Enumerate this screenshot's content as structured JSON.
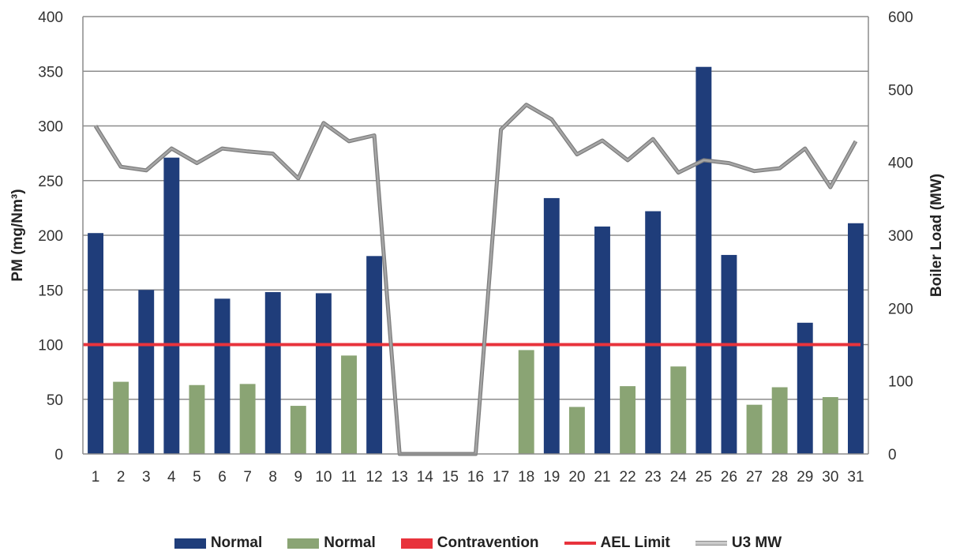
{
  "chart_data": {
    "type": "bar",
    "categories": [
      "1",
      "2",
      "3",
      "4",
      "5",
      "6",
      "7",
      "8",
      "9",
      "10",
      "11",
      "12",
      "13",
      "14",
      "15",
      "16",
      "17",
      "18",
      "19",
      "20",
      "21",
      "22",
      "23",
      "24",
      "25",
      "26",
      "27",
      "28",
      "29",
      "30",
      "31"
    ],
    "ylabel": "PM (mg/Nm³)",
    "y2label": "Boiler Load (MW)",
    "ylim": [
      0,
      400
    ],
    "y2lim": [
      0,
      600
    ],
    "yticks": [
      0,
      50,
      100,
      150,
      200,
      250,
      300,
      350,
      400
    ],
    "y2ticks": [
      0,
      100,
      200,
      300,
      400,
      500,
      600
    ],
    "grid": true,
    "legend_position": "bottom",
    "series": [
      {
        "name": "Normal",
        "kind": "bar",
        "axis": "left",
        "color": "#1f3d7a",
        "values": [
          202,
          null,
          150,
          271,
          null,
          142,
          null,
          148,
          null,
          147,
          null,
          181,
          null,
          null,
          null,
          null,
          null,
          null,
          234,
          null,
          208,
          null,
          222,
          null,
          354,
          182,
          null,
          null,
          120,
          null,
          211
        ]
      },
      {
        "name": "Normal",
        "kind": "bar",
        "axis": "left",
        "color": "#8aa474",
        "values": [
          null,
          66,
          null,
          null,
          63,
          null,
          64,
          null,
          44,
          null,
          90,
          null,
          null,
          null,
          null,
          null,
          null,
          95,
          null,
          43,
          null,
          62,
          null,
          80,
          null,
          null,
          45,
          61,
          null,
          52,
          null
        ]
      },
      {
        "name": "Contravention",
        "kind": "bar",
        "axis": "left",
        "color": "#e8333c",
        "values": [
          null,
          null,
          null,
          null,
          null,
          null,
          null,
          null,
          null,
          null,
          null,
          null,
          null,
          null,
          null,
          null,
          null,
          null,
          null,
          null,
          null,
          null,
          null,
          null,
          null,
          null,
          null,
          null,
          null,
          null,
          null
        ]
      },
      {
        "name": "AEL Limit",
        "kind": "line",
        "axis": "left",
        "color": "#e8333c",
        "values": [
          100,
          100,
          100,
          100,
          100,
          100,
          100,
          100,
          100,
          100,
          100,
          100,
          100,
          100,
          100,
          100,
          100,
          100,
          100,
          100,
          100,
          100,
          100,
          100,
          100,
          100,
          100,
          100,
          100,
          100,
          100
        ]
      },
      {
        "name": "U3 MW",
        "kind": "line",
        "axis": "right",
        "color": "#a6a6a6",
        "values": [
          450,
          394,
          389,
          419,
          399,
          419,
          415,
          412,
          378,
          454,
          429,
          437,
          0,
          0,
          0,
          0,
          445,
          479,
          459,
          411,
          430,
          403,
          432,
          386,
          403,
          399,
          388,
          392,
          419,
          366,
          429
        ]
      }
    ]
  }
}
